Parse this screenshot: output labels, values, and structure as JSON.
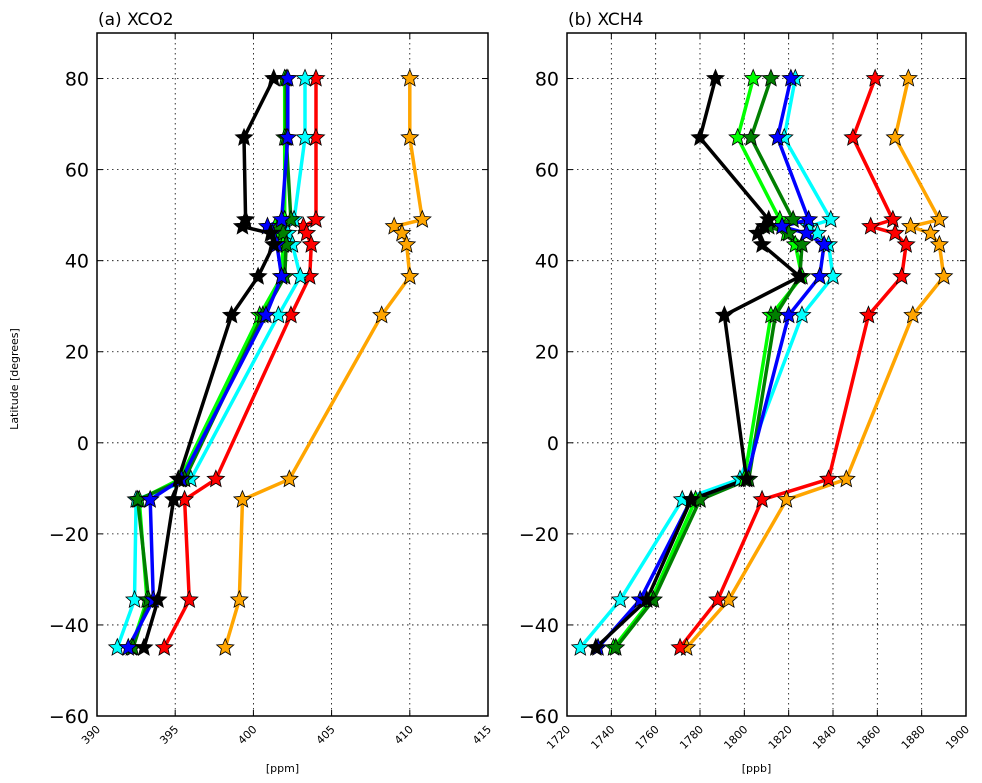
{
  "ylabel": "Latitude [degrees]",
  "colors": {
    "black": "#000000",
    "red": "#ff0000",
    "blue": "#0000ff",
    "green": "#008000",
    "lime": "#00ff00",
    "cyan": "#00ffff",
    "orange": "#ffa500"
  },
  "chart_data": [
    {
      "type": "line",
      "title": "(a)  XCO2",
      "xlabel": "[ppm]",
      "ylabel": "Latitude [degrees]",
      "xlim": [
        390,
        415
      ],
      "ylim": [
        -60,
        90
      ],
      "xticks": [
        "390",
        "395",
        "400",
        "405",
        "410",
        "415"
      ],
      "yticks": [
        "−60",
        "−40",
        "−20",
        "0",
        "20",
        "40",
        "60",
        "80"
      ],
      "xtick_values": [
        390,
        395,
        400,
        405,
        410,
        415
      ],
      "ytick_values": [
        -60,
        -40,
        -20,
        0,
        20,
        40,
        60,
        80
      ],
      "grid": true,
      "marker": "star",
      "series": [
        {
          "color": "#ffa500",
          "points": [
            [
              410.0,
              80
            ],
            [
              410.0,
              67
            ],
            [
              410.8,
              49
            ],
            [
              409.0,
              47.5
            ],
            [
              409.5,
              46
            ],
            [
              409.8,
              43.5
            ],
            [
              410.0,
              36.5
            ],
            [
              408.2,
              28
            ],
            [
              402.3,
              -8
            ],
            [
              399.3,
              -12.5
            ],
            [
              399.1,
              -34.5
            ],
            [
              398.2,
              -45
            ]
          ]
        },
        {
          "color": "#ff0000",
          "points": [
            [
              404.0,
              80
            ],
            [
              404.0,
              67
            ],
            [
              404.0,
              49
            ],
            [
              403.2,
              47.5
            ],
            [
              403.4,
              46
            ],
            [
              403.7,
              43.5
            ],
            [
              403.6,
              36.5
            ],
            [
              402.4,
              28
            ],
            [
              397.6,
              -8
            ],
            [
              395.6,
              -12.5
            ],
            [
              395.9,
              -34.5
            ],
            [
              394.3,
              -45
            ]
          ]
        },
        {
          "color": "#00ffff",
          "points": [
            [
              403.3,
              80
            ],
            [
              403.3,
              67
            ],
            [
              402.6,
              49
            ],
            [
              401.8,
              47.5
            ],
            [
              402.2,
              46
            ],
            [
              402.5,
              43.5
            ],
            [
              403.0,
              36.5
            ],
            [
              401.6,
              28
            ],
            [
              396.0,
              -8
            ],
            [
              392.5,
              -12.5
            ],
            [
              392.4,
              -34.5
            ],
            [
              391.3,
              -45
            ]
          ]
        },
        {
          "color": "#00ff00",
          "points": [
            [
              402.0,
              80
            ],
            [
              402.0,
              67
            ],
            [
              402.0,
              49
            ],
            [
              401.4,
              47.5
            ],
            [
              401.6,
              46
            ],
            [
              401.9,
              43.5
            ],
            [
              401.8,
              36.5
            ],
            [
              400.4,
              28
            ],
            [
              395.3,
              -8
            ],
            [
              392.7,
              -12.5
            ],
            [
              393.2,
              -34.5
            ],
            [
              392.2,
              -45
            ]
          ]
        },
        {
          "color": "#008000",
          "points": [
            [
              402.1,
              80
            ],
            [
              402.1,
              67
            ],
            [
              402.4,
              49
            ],
            [
              401.6,
              47.5
            ],
            [
              401.9,
              46
            ],
            [
              402.1,
              43.5
            ],
            [
              402.0,
              36.5
            ],
            [
              400.6,
              28
            ],
            [
              395.6,
              -8
            ],
            [
              392.6,
              -12.5
            ],
            [
              393.3,
              -34.5
            ],
            [
              392.3,
              -45
            ]
          ]
        },
        {
          "color": "#0000ff",
          "points": [
            [
              402.2,
              80
            ],
            [
              402.2,
              67
            ],
            [
              401.8,
              49
            ],
            [
              400.9,
              47.5
            ],
            [
              401.2,
              46
            ],
            [
              401.5,
              43.5
            ],
            [
              401.8,
              36.5
            ],
            [
              400.8,
              28
            ],
            [
              395.4,
              -8
            ],
            [
              393.4,
              -12.5
            ],
            [
              393.6,
              -34.5
            ],
            [
              392.0,
              -45
            ]
          ]
        },
        {
          "color": "#000000",
          "points": [
            [
              401.3,
              80
            ],
            [
              399.4,
              67
            ],
            [
              399.5,
              49
            ],
            [
              399.3,
              47.5
            ],
            [
              401.1,
              46
            ],
            [
              401.3,
              43.5
            ],
            [
              400.3,
              36.5
            ],
            [
              398.6,
              28
            ],
            [
              395.2,
              -8
            ],
            [
              394.9,
              -12.5
            ],
            [
              393.9,
              -34.5
            ],
            [
              393.0,
              -45
            ]
          ]
        }
      ]
    },
    {
      "type": "line",
      "title": "(b)  XCH4",
      "xlabel": "[ppb]",
      "ylabel": "",
      "xlim": [
        1720,
        1900
      ],
      "ylim": [
        -60,
        90
      ],
      "xticks": [
        "1720",
        "1740",
        "1760",
        "1780",
        "1800",
        "1820",
        "1840",
        "1860",
        "1880",
        "1900"
      ],
      "yticks": [
        "−60",
        "−40",
        "−20",
        "0",
        "20",
        "40",
        "60",
        "80"
      ],
      "xtick_values": [
        1720,
        1740,
        1760,
        1780,
        1800,
        1820,
        1840,
        1860,
        1880,
        1900
      ],
      "ytick_values": [
        -60,
        -40,
        -20,
        0,
        20,
        40,
        60,
        80
      ],
      "grid": true,
      "marker": "star",
      "series": [
        {
          "color": "#ffa500",
          "points": [
            [
              1874,
              80
            ],
            [
              1868,
              67
            ],
            [
              1888,
              49
            ],
            [
              1875,
              47.5
            ],
            [
              1884,
              46
            ],
            [
              1888,
              43.5
            ],
            [
              1890,
              36.5
            ],
            [
              1876,
              28
            ],
            [
              1846,
              -8
            ],
            [
              1819,
              -12.5
            ],
            [
              1793,
              -34.5
            ],
            [
              1774,
              -45
            ]
          ]
        },
        {
          "color": "#ff0000",
          "points": [
            [
              1859,
              80
            ],
            [
              1849,
              67
            ],
            [
              1867,
              49
            ],
            [
              1857,
              47.5
            ],
            [
              1868,
              46
            ],
            [
              1873,
              43.5
            ],
            [
              1871,
              36.5
            ],
            [
              1856,
              28
            ],
            [
              1838,
              -8
            ],
            [
              1808,
              -12.5
            ],
            [
              1788,
              -34.5
            ],
            [
              1771,
              -45
            ]
          ]
        },
        {
          "color": "#00ffff",
          "points": [
            [
              1823,
              80
            ],
            [
              1818,
              67
            ],
            [
              1839,
              49
            ],
            [
              1829,
              47.5
            ],
            [
              1833,
              46
            ],
            [
              1838,
              43.5
            ],
            [
              1840,
              36.5
            ],
            [
              1826,
              28
            ],
            [
              1798,
              -8
            ],
            [
              1772,
              -12.5
            ],
            [
              1744,
              -34.5
            ],
            [
              1726,
              -45
            ]
          ]
        },
        {
          "color": "#00ff00",
          "points": [
            [
              1804,
              80
            ],
            [
              1797,
              67
            ],
            [
              1816,
              49
            ],
            [
              1817,
              47.5
            ],
            [
              1819,
              46
            ],
            [
              1823,
              43.5
            ],
            [
              1826,
              36.5
            ],
            [
              1812,
              28
            ],
            [
              1800,
              -8
            ],
            [
              1778,
              -12.5
            ],
            [
              1758,
              -34.5
            ],
            [
              1741,
              -45
            ]
          ]
        },
        {
          "color": "#008000",
          "points": [
            [
              1812,
              80
            ],
            [
              1803,
              67
            ],
            [
              1822,
              49
            ],
            [
              1811,
              47.5
            ],
            [
              1820,
              46
            ],
            [
              1826,
              43.5
            ],
            [
              1825,
              36.5
            ],
            [
              1814,
              28
            ],
            [
              1802,
              -8
            ],
            [
              1780,
              -12.5
            ],
            [
              1759,
              -34.5
            ],
            [
              1742,
              -45
            ]
          ]
        },
        {
          "color": "#0000ff",
          "points": [
            [
              1821,
              80
            ],
            [
              1815,
              67
            ],
            [
              1829,
              49
            ],
            [
              1817,
              47.5
            ],
            [
              1828,
              46
            ],
            [
              1836,
              43.5
            ],
            [
              1834,
              36.5
            ],
            [
              1820,
              28
            ],
            [
              1801,
              -8
            ],
            [
              1776,
              -12.5
            ],
            [
              1753,
              -34.5
            ],
            [
              1734,
              -45
            ]
          ]
        },
        {
          "color": "#000000",
          "points": [
            [
              1787,
              80
            ],
            [
              1780,
              67
            ],
            [
              1811,
              49
            ],
            [
              1809,
              47.5
            ],
            [
              1806,
              46
            ],
            [
              1808,
              43.5
            ],
            [
              1825,
              36.5
            ],
            [
              1791,
              28
            ],
            [
              1801,
              -8
            ],
            [
              1776,
              -12.5
            ],
            [
              1756,
              -34.5
            ],
            [
              1733,
              -45
            ]
          ]
        }
      ]
    }
  ]
}
